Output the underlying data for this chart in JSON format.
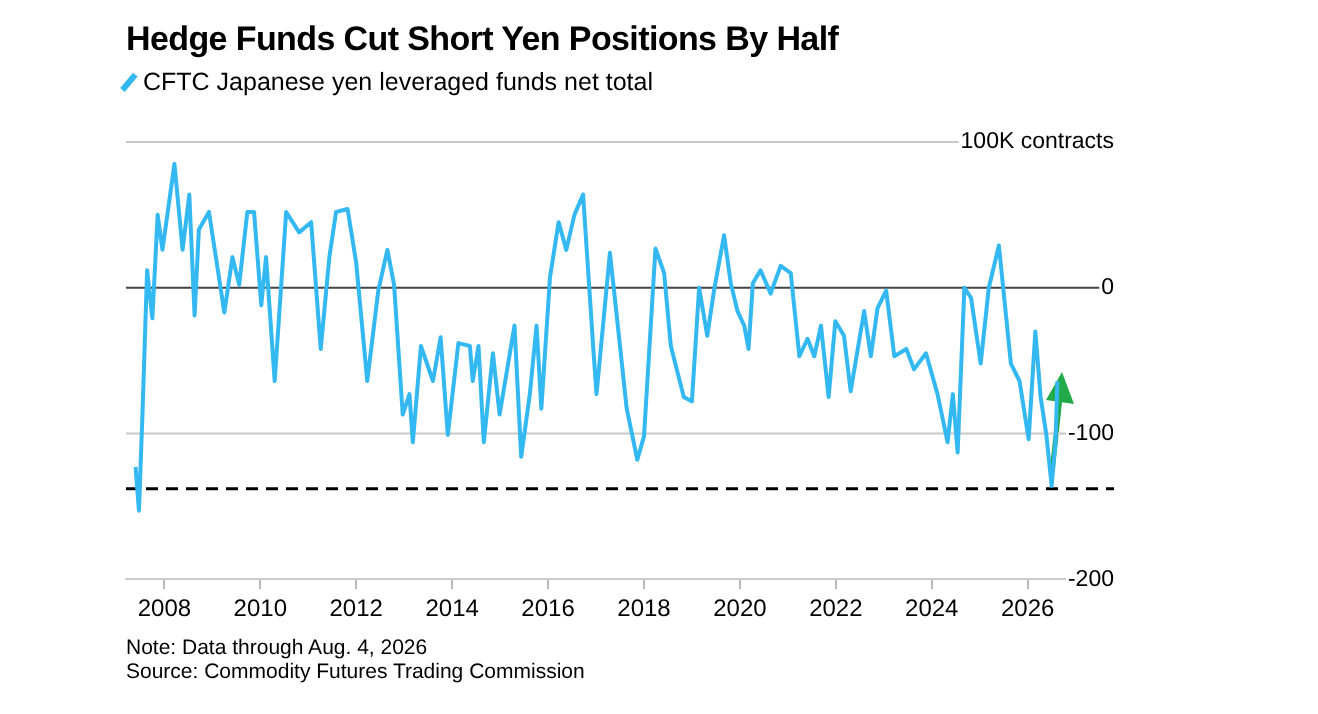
{
  "chart_data": {
    "type": "line",
    "title": "Hedge Funds Cut Short Yen Positions By Half",
    "x": [
      2007.4,
      2007.47,
      2007.54,
      2007.64,
      2007.75,
      2007.86,
      2007.96,
      2008.1,
      2008.21,
      2008.38,
      2008.52,
      2008.63,
      2008.72,
      2008.93,
      2009.25,
      2009.42,
      2009.56,
      2009.73,
      2009.87,
      2010.02,
      2010.12,
      2010.3,
      2010.54,
      2010.81,
      2011.06,
      2011.26,
      2011.44,
      2011.58,
      2011.82,
      2012.0,
      2012.23,
      2012.46,
      2012.65,
      2012.79,
      2012.97,
      2013.11,
      2013.18,
      2013.35,
      2013.6,
      2013.76,
      2013.91,
      2014.13,
      2014.37,
      2014.43,
      2014.55,
      2014.66,
      2014.85,
      2014.99,
      2015.3,
      2015.44,
      2015.62,
      2015.76,
      2015.86,
      2016.04,
      2016.22,
      2016.38,
      2016.55,
      2016.73,
      2016.94,
      2017.01,
      2017.29,
      2017.5,
      2017.64,
      2017.86,
      2018.0,
      2018.24,
      2018.42,
      2018.56,
      2018.83,
      2019.0,
      2019.15,
      2019.32,
      2019.46,
      2019.67,
      2019.81,
      2019.95,
      2020.09,
      2020.18,
      2020.27,
      2020.43,
      2020.64,
      2020.85,
      2021.06,
      2021.24,
      2021.41,
      2021.55,
      2021.69,
      2021.85,
      2021.99,
      2022.17,
      2022.31,
      2022.59,
      2022.73,
      2022.87,
      2023.05,
      2023.22,
      2023.47,
      2023.63,
      2023.88,
      2024.12,
      2024.33,
      2024.44,
      2024.54,
      2024.68,
      2024.82,
      2025.02,
      2025.19,
      2025.4,
      2025.65,
      2025.83,
      2026.02,
      2026.16,
      2026.27,
      2026.39,
      2026.5,
      2026.58,
      2026.62
    ],
    "series": [
      {
        "name": "CFTC Japanese yen leveraged funds net total",
        "color": "#33b8f2",
        "values": [
          -123,
          -153,
          -90,
          12,
          -21,
          50,
          26,
          59,
          85,
          26,
          64,
          -19,
          40,
          52,
          -17,
          21,
          2,
          52,
          52,
          -12,
          21,
          -64,
          52,
          38,
          45,
          -42,
          21,
          52,
          54,
          17,
          -64,
          -2,
          26,
          2,
          -87,
          -73,
          -106,
          -40,
          -64,
          -34,
          -101,
          -38,
          -40,
          -64,
          -40,
          -106,
          -45,
          -87,
          -26,
          -116,
          -73,
          -26,
          -83,
          7,
          45,
          26,
          50,
          64,
          -40,
          -73,
          24,
          -40,
          -83,
          -118,
          -102,
          27,
          10,
          -40,
          -75,
          -78,
          0,
          -33,
          -2,
          36,
          3,
          -16,
          -26,
          -42,
          3,
          12,
          -4,
          15,
          10,
          -47,
          -35,
          -47,
          -26,
          -75,
          -23,
          -33,
          -71,
          -16,
          -47,
          -14,
          -2,
          -47,
          -42,
          -56,
          -45,
          -73,
          -106,
          -73,
          -113,
          0,
          -7,
          -52,
          0,
          29,
          -52,
          -64,
          -104,
          -30,
          -75,
          -101,
          -136,
          -106,
          -64
        ]
      }
    ],
    "xlim": [
      2007.2,
      2027.8
    ],
    "xticks": [
      2008,
      2010,
      2012,
      2014,
      2016,
      2018,
      2020,
      2022,
      2024,
      2026
    ],
    "ylim": [
      -200,
      100
    ],
    "yticks": [
      {
        "value": 100,
        "label": "100K contracts"
      },
      0,
      -100,
      -200
    ],
    "legend": "top left",
    "line_style": "solid",
    "marker": "none",
    "ref_lines": [
      {
        "axis": "y",
        "value": 100,
        "color": "#c8c8c8",
        "line_style": "solid"
      },
      {
        "axis": "y",
        "value": 0,
        "color": "#444444",
        "line_style": "solid"
      },
      {
        "axis": "y",
        "value": -100,
        "color": "#c8c8c8",
        "line_style": "solid"
      },
      {
        "axis": "y",
        "value": -138,
        "color": "#000000",
        "line_style": "dashed"
      }
    ],
    "annotations": [
      "Note: Data through Aug. 4, 2026",
      "Source: Commodity Futures Trading Commission"
    ]
  }
}
